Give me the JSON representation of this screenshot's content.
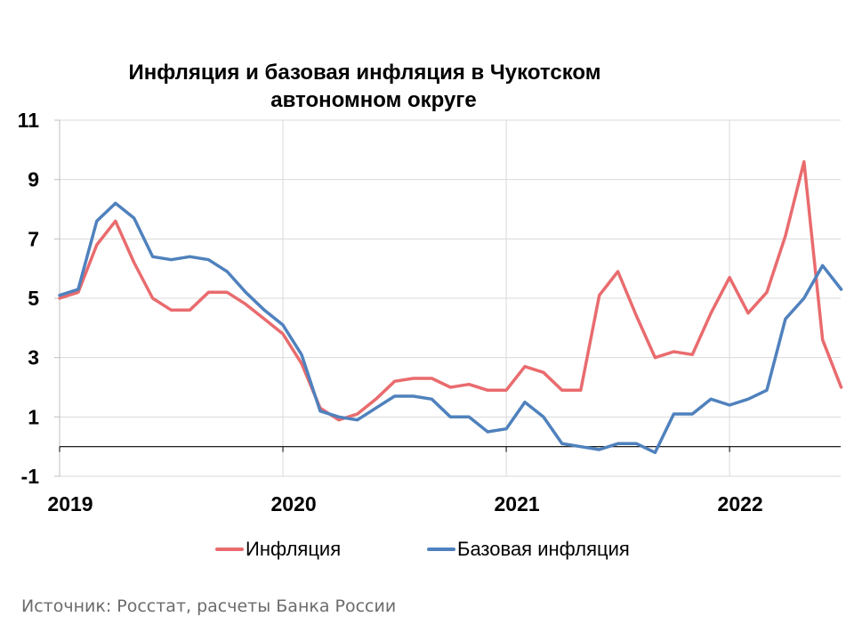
{
  "title_line1": "Инфляция и базовая инфляция в Чукотском",
  "title_line2": "автономном округе",
  "source": "Источник: Росстат, расчеты Банка России",
  "chart_data": {
    "type": "line",
    "title": "Инфляция и базовая инфляция в Чукотском автономном округе",
    "ylim": [
      -1,
      11
    ],
    "y_ticks": [
      "11",
      "9",
      "7",
      "5",
      "3",
      "1",
      "-1"
    ],
    "x_tick_labels": [
      "2019",
      "2020",
      "2021",
      "2022"
    ],
    "x": [
      "2019-01",
      "2019-02",
      "2019-03",
      "2019-04",
      "2019-05",
      "2019-06",
      "2019-07",
      "2019-08",
      "2019-09",
      "2019-10",
      "2019-11",
      "2019-12",
      "2020-01",
      "2020-02",
      "2020-03",
      "2020-04",
      "2020-05",
      "2020-06",
      "2020-07",
      "2020-08",
      "2020-09",
      "2020-10",
      "2020-11",
      "2020-12",
      "2021-01",
      "2021-02",
      "2021-03",
      "2021-04",
      "2021-05",
      "2021-06",
      "2021-07",
      "2021-08",
      "2021-09",
      "2021-10",
      "2021-11",
      "2021-12",
      "2022-01",
      "2022-02",
      "2022-03",
      "2022-04",
      "2022-05",
      "2022-06",
      "2022-07"
    ],
    "grid": true,
    "legend_position": "bottom",
    "series": [
      {
        "name": "Инфляция",
        "color": "#e96b6e",
        "values": [
          5.0,
          5.2,
          6.8,
          7.6,
          6.2,
          5.0,
          4.6,
          4.6,
          5.2,
          5.2,
          4.8,
          4.3,
          3.8,
          2.8,
          1.3,
          0.9,
          1.1,
          1.6,
          2.2,
          2.3,
          2.3,
          2.0,
          2.1,
          1.9,
          1.9,
          2.7,
          2.5,
          1.9,
          1.9,
          5.1,
          5.9,
          4.4,
          3.0,
          3.2,
          3.1,
          4.5,
          5.7,
          4.5,
          5.2,
          7.1,
          9.6,
          3.6,
          2.0
        ]
      },
      {
        "name": "Базовая инфляция",
        "color": "#4f81bd",
        "values": [
          5.1,
          5.3,
          7.6,
          8.2,
          7.7,
          6.4,
          6.3,
          6.4,
          6.3,
          5.9,
          5.2,
          4.6,
          4.1,
          3.1,
          1.2,
          1.0,
          0.9,
          1.3,
          1.7,
          1.7,
          1.6,
          1.0,
          1.0,
          0.5,
          0.6,
          1.5,
          1.0,
          0.1,
          0.0,
          -0.1,
          0.1,
          0.1,
          -0.2,
          1.1,
          1.1,
          1.6,
          1.4,
          1.6,
          1.9,
          4.3,
          5.0,
          6.1,
          5.3
        ]
      }
    ]
  }
}
